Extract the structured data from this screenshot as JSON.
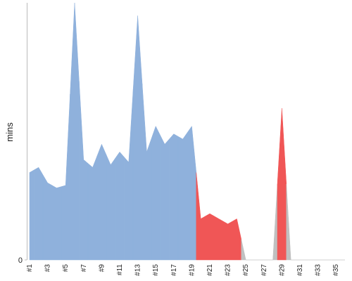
{
  "chart_data": {
    "type": "area",
    "y_label": "mins",
    "categories": [
      "#1",
      null,
      "#3",
      null,
      "#5",
      null,
      "#7",
      null,
      "#9",
      null,
      "#11",
      null,
      "#13",
      null,
      "#15",
      null,
      "#17",
      null,
      "#19",
      null,
      "#21",
      null,
      "#23",
      null,
      "#25",
      null,
      "#27",
      null,
      "#29",
      null,
      "#31",
      null,
      "#33",
      null,
      "#35",
      null
    ],
    "values": [
      34,
      36,
      30,
      28,
      29,
      100,
      39,
      36,
      45,
      37,
      42,
      38,
      95,
      42,
      52,
      45,
      49,
      47,
      52,
      16,
      18,
      16,
      14,
      16,
      0,
      0,
      0,
      0,
      59,
      0,
      0,
      0,
      0,
      0,
      0,
      0
    ],
    "colors": [
      "#8fb1dc",
      "#8fb1dc",
      "#8fb1dc",
      "#8fb1dc",
      "#8fb1dc",
      "#8fb1dc",
      "#8fb1dc",
      "#8fb1dc",
      "#8fb1dc",
      "#8fb1dc",
      "#8fb1dc",
      "#8fb1dc",
      "#8fb1dc",
      "#8fb1dc",
      "#8fb1dc",
      "#8fb1dc",
      "#8fb1dc",
      "#8fb1dc",
      "#8fb1dc",
      "#f05656",
      "#f05656",
      "#f05656",
      "#f05656",
      "#f05656",
      "#c0c0c0",
      "#c0c0c0",
      "#c0c0c0",
      "#c0c0c0",
      "#f05656",
      "#c0c0c0",
      "#c0c0c0",
      "#c0c0c0",
      "#c0c0c0",
      "#c0c0c0",
      "#c0c0c0",
      "#c0c0c0"
    ],
    "ylim": [
      0,
      100
    ],
    "yticks": [
      0
    ]
  }
}
